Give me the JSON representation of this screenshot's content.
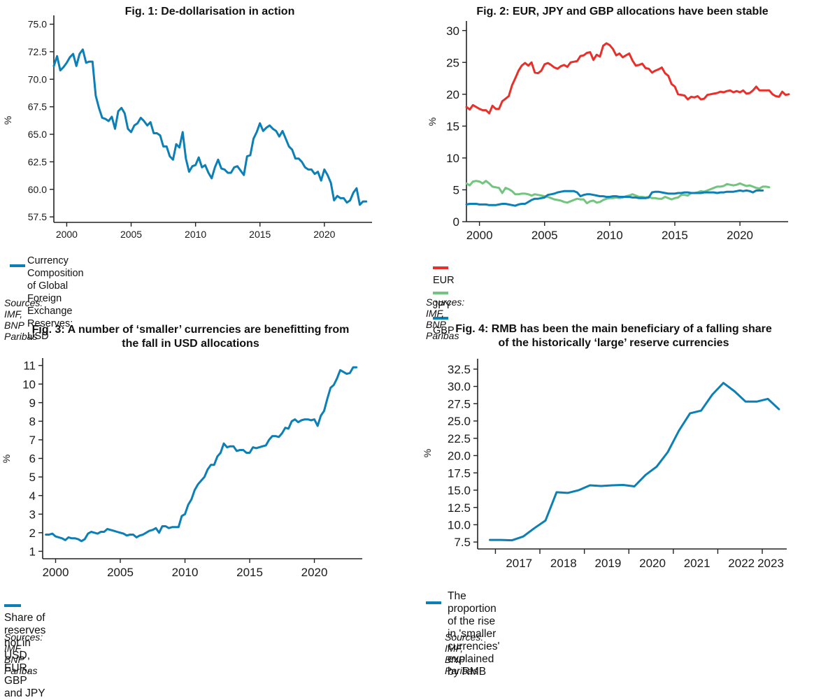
{
  "sources_label": "Sources: IMF, BNP Paribas",
  "colors": {
    "blue": "#0b7fb6",
    "red": "#e8302a",
    "green": "#72c47e",
    "axis": "#222222"
  },
  "chart_data": [
    {
      "id": "fig1",
      "type": "line",
      "title": "Fig. 1: De-dollarisation in action",
      "xlabel": "",
      "ylabel": "%",
      "ylim": [
        57.0,
        75.8
      ],
      "xlim": [
        1999.0,
        2023.7
      ],
      "yticks": [
        57.5,
        60.0,
        62.5,
        65.0,
        67.5,
        70.0,
        72.5,
        75.0
      ],
      "ytick_labels": [
        "57.5",
        "60.0",
        "62.5",
        "65.0",
        "67.5",
        "70.0",
        "72.5",
        "75.0"
      ],
      "xticks": [
        2000,
        2005,
        2010,
        2015,
        2020
      ],
      "xtick_labels": [
        "2000",
        "2005",
        "2010",
        "2015",
        "2020"
      ],
      "grid": false,
      "legend": "bottom-left",
      "source": "Sources: IMF, BNP Paribas",
      "series": [
        {
          "name": "Currency Composition of Global Foreign Exchange Reserves: USD",
          "legend_lines": [
            "Currency Composition of Global",
            "Foreign Exchange Reserves: USD"
          ],
          "color": "#0b7fb6",
          "x_start": 1999.0,
          "x_step": 0.25,
          "values": [
            71.2,
            72.1,
            70.8,
            71.1,
            71.5,
            72.0,
            72.3,
            71.2,
            72.3,
            72.7,
            71.5,
            71.6,
            71.6,
            68.5,
            67.4,
            66.5,
            66.4,
            66.2,
            66.6,
            65.5,
            67.1,
            67.4,
            66.9,
            65.5,
            65.2,
            65.8,
            66.0,
            66.5,
            66.2,
            65.8,
            66.1,
            65.1,
            65.1,
            64.9,
            63.9,
            63.9,
            63.0,
            62.7,
            64.1,
            63.8,
            65.2,
            62.8,
            61.6,
            62.1,
            62.2,
            62.9,
            62.0,
            62.2,
            61.5,
            61.0,
            62.0,
            62.7,
            61.9,
            61.8,
            61.5,
            61.5,
            62.0,
            62.1,
            61.7,
            61.3,
            63.0,
            63.1,
            64.6,
            65.2,
            66.0,
            65.3,
            65.6,
            65.8,
            65.5,
            65.3,
            64.8,
            65.3,
            64.6,
            63.9,
            63.6,
            62.8,
            62.8,
            62.5,
            62.0,
            61.8,
            61.8,
            61.4,
            61.6,
            60.8,
            61.8,
            61.3,
            60.6,
            59.0,
            59.4,
            59.2,
            59.2,
            58.8,
            59.0,
            59.7,
            60.1,
            58.6,
            58.9,
            58.9
          ]
        }
      ]
    },
    {
      "id": "fig2",
      "type": "line",
      "title": "Fig. 2: EUR, JPY and GBP allocations have been stable",
      "xlabel": "",
      "ylabel": "%",
      "ylim": [
        0,
        31.5
      ],
      "xlim": [
        1999.0,
        2023.7
      ],
      "yticks": [
        0,
        5,
        10,
        15,
        20,
        25,
        30
      ],
      "ytick_labels": [
        "0",
        "5",
        "10",
        "15",
        "20",
        "25",
        "30"
      ],
      "xticks": [
        2000,
        2005,
        2010,
        2015,
        2020
      ],
      "xtick_labels": [
        "2000",
        "2005",
        "2010",
        "2015",
        "2020"
      ],
      "grid": false,
      "legend": "bottom-left",
      "source": "Sources: IMF, BNP Paribas",
      "series": [
        {
          "name": "EUR",
          "color": "#e8302a",
          "x_start": 1999.0,
          "x_step": 0.25,
          "values": [
            18.0,
            17.6,
            18.3,
            18.0,
            17.7,
            17.5,
            17.5,
            17.0,
            18.2,
            17.7,
            17.7,
            18.9,
            19.3,
            19.7,
            21.4,
            22.5,
            23.7,
            24.5,
            24.9,
            24.5,
            25.0,
            23.4,
            23.3,
            23.7,
            24.7,
            24.9,
            24.6,
            24.2,
            24.0,
            24.4,
            24.6,
            24.3,
            25.0,
            25.1,
            25.2,
            26.0,
            26.1,
            26.5,
            26.6,
            25.4,
            26.2,
            25.9,
            27.6,
            28.0,
            27.7,
            27.1,
            26.1,
            26.4,
            25.8,
            26.1,
            26.4,
            25.3,
            24.5,
            24.6,
            24.8,
            24.1,
            24.0,
            23.4,
            23.7,
            23.9,
            24.2,
            23.3,
            22.9,
            21.6,
            21.2,
            20.0,
            19.9,
            19.8,
            19.2,
            19.6,
            19.5,
            19.7,
            19.2,
            19.3,
            19.9,
            20.0,
            20.1,
            20.2,
            20.4,
            20.3,
            20.5,
            20.6,
            20.3,
            20.5,
            20.3,
            20.6,
            20.1,
            20.2,
            20.6,
            21.2,
            20.6,
            20.6,
            20.6,
            20.6,
            20.0,
            19.7,
            19.6,
            20.4,
            19.9,
            20.0
          ]
        },
        {
          "name": "JPY",
          "color": "#72c47e",
          "x_start": 1999.0,
          "x_step": 0.25,
          "values": [
            6.0,
            5.7,
            6.3,
            6.4,
            6.3,
            6.0,
            6.4,
            6.0,
            5.5,
            5.4,
            5.3,
            4.5,
            5.3,
            5.1,
            4.8,
            4.3,
            4.3,
            4.4,
            4.4,
            4.3,
            4.1,
            4.3,
            4.2,
            4.1,
            4.0,
            3.9,
            3.7,
            3.5,
            3.4,
            3.3,
            3.1,
            3.0,
            3.2,
            3.4,
            3.6,
            3.5,
            3.5,
            2.9,
            3.2,
            3.3,
            3.0,
            3.1,
            3.4,
            3.6,
            3.7,
            3.7,
            3.8,
            3.7,
            3.8,
            4.0,
            4.1,
            4.3,
            4.1,
            3.9,
            3.9,
            3.8,
            3.9,
            3.7,
            3.7,
            3.6,
            3.6,
            3.9,
            3.7,
            3.5,
            3.7,
            3.8,
            4.2,
            4.2,
            4.1,
            4.5,
            4.5,
            4.6,
            4.8,
            4.7,
            4.9,
            5.1,
            5.3,
            5.5,
            5.5,
            5.6,
            5.9,
            5.8,
            5.7,
            5.8,
            6.0,
            5.8,
            5.6,
            5.7,
            5.5,
            5.3,
            5.2,
            5.5,
            5.5,
            5.4
          ]
        },
        {
          "name": "GBP",
          "color": "#0b7fb6",
          "x_start": 1999.0,
          "x_step": 0.25,
          "values": [
            2.7,
            2.8,
            2.8,
            2.8,
            2.7,
            2.7,
            2.7,
            2.6,
            2.6,
            2.6,
            2.7,
            2.8,
            2.8,
            2.7,
            2.6,
            2.5,
            2.7,
            2.8,
            2.8,
            3.1,
            3.4,
            3.6,
            3.6,
            3.7,
            3.8,
            4.2,
            4.3,
            4.4,
            4.6,
            4.7,
            4.8,
            4.8,
            4.8,
            4.8,
            4.6,
            4.0,
            4.2,
            4.3,
            4.3,
            4.2,
            4.1,
            4.0,
            4.0,
            3.9,
            3.9,
            4.0,
            4.0,
            3.9,
            3.9,
            3.9,
            3.9,
            3.8,
            3.8,
            3.7,
            3.7,
            3.7,
            3.8,
            4.6,
            4.7,
            4.7,
            4.6,
            4.5,
            4.4,
            4.4,
            4.4,
            4.5,
            4.5,
            4.6,
            4.6,
            4.5,
            4.5,
            4.5,
            4.5,
            4.6,
            4.6,
            4.6,
            4.6,
            4.5,
            4.6,
            4.6,
            4.7,
            4.7,
            4.7,
            4.8,
            4.9,
            4.8,
            4.9,
            4.8,
            4.6,
            4.9,
            4.9,
            4.9
          ]
        }
      ]
    },
    {
      "id": "fig3",
      "type": "line",
      "title": "Fig. 3: A number of ‘smaller’ currencies are benefitting from the fall in USD allocations",
      "title_lines": [
        "Fig. 3: A number of ‘smaller’ currencies are benefitting from",
        "the fall in USD allocations"
      ],
      "xlabel": "",
      "ylabel": "%",
      "ylim": [
        0.6,
        11.4
      ],
      "xlim": [
        1999.0,
        2023.7
      ],
      "yticks": [
        1,
        2,
        3,
        4,
        5,
        6,
        7,
        8,
        9,
        10,
        11
      ],
      "ytick_labels": [
        "1",
        "2",
        "3",
        "4",
        "5",
        "6",
        "7",
        "8",
        "9",
        "10",
        "11"
      ],
      "xticks": [
        2000,
        2005,
        2010,
        2015,
        2020
      ],
      "xtick_labels": [
        "2000",
        "2005",
        "2010",
        "2015",
        "2020"
      ],
      "grid": false,
      "legend": "bottom-left",
      "source": "Sources: IMF, BNP Paribas",
      "series": [
        {
          "name": "Share of reserves not in USD, EUR, GBP and JPY",
          "color": "#0b7fb6",
          "x_start": 1999.25,
          "x_step": 0.25,
          "values": [
            1.9,
            1.9,
            1.95,
            1.8,
            1.75,
            1.7,
            1.6,
            1.75,
            1.7,
            1.7,
            1.65,
            1.55,
            1.65,
            1.95,
            2.05,
            2.0,
            1.95,
            2.05,
            2.05,
            2.2,
            2.15,
            2.1,
            2.05,
            2.0,
            1.95,
            1.85,
            1.9,
            1.9,
            1.75,
            1.85,
            1.9,
            2.0,
            2.1,
            2.15,
            2.25,
            2.0,
            2.35,
            2.35,
            2.25,
            2.3,
            2.3,
            2.3,
            2.9,
            3.0,
            3.5,
            3.8,
            4.3,
            4.6,
            4.8,
            5.0,
            5.4,
            5.65,
            5.65,
            6.1,
            6.3,
            6.8,
            6.6,
            6.65,
            6.65,
            6.4,
            6.45,
            6.45,
            6.3,
            6.3,
            6.6,
            6.55,
            6.6,
            6.65,
            6.7,
            7.0,
            7.2,
            7.2,
            7.15,
            7.35,
            7.65,
            7.6,
            8.0,
            8.1,
            7.95,
            8.05,
            8.1,
            8.1,
            8.05,
            8.1,
            7.75,
            8.3,
            8.55,
            9.2,
            9.8,
            9.95,
            10.3,
            10.75,
            10.65,
            10.55,
            10.6,
            10.9,
            10.9
          ]
        }
      ]
    },
    {
      "id": "fig4",
      "type": "line",
      "title": "Fig. 4: RMB has been the main beneficiary of a falling share of the historically ‘large’ reserve currencies",
      "title_lines": [
        "Fig. 4: RMB has been the main beneficiary of a falling share",
        "of the historically ‘large’ reserve currencies"
      ],
      "xlabel": "",
      "ylabel": "%",
      "ylim": [
        6.5,
        34.0
      ],
      "xlim": [
        2016.6,
        2023.55
      ],
      "yticks": [
        7.5,
        10.0,
        12.5,
        15.0,
        17.5,
        20.0,
        22.5,
        25.0,
        27.5,
        30.0,
        32.5
      ],
      "ytick_labels": [
        "7.5",
        "10.0",
        "12.5",
        "15.0",
        "17.5",
        "20.0",
        "22.5",
        "25.0",
        "27.5",
        "30.0",
        "32.5"
      ],
      "xticks": [
        2017,
        2018,
        2019,
        2020,
        2021,
        2022,
        2023
      ],
      "xtick_labels": [
        "2017",
        "2018",
        "2019",
        "2020",
        "2021",
        "2022",
        "2023"
      ],
      "grid": false,
      "legend": "bottom-left",
      "source": "Sources: IMF, BNP Paribas",
      "series": [
        {
          "name": "The proportion of the rise in 'smaller currencies' explained by RMB",
          "legend_lines": [
            "The proportion of the rise in 'smaller currencies'",
            "explained by RMB"
          ],
          "color": "#0b7fb6",
          "x_start": 2016.875,
          "x_step": 0.25,
          "values": [
            7.8,
            7.8,
            7.75,
            8.3,
            9.5,
            10.6,
            14.7,
            14.6,
            15.0,
            15.7,
            15.6,
            15.7,
            15.75,
            15.55,
            17.2,
            18.4,
            20.5,
            23.6,
            26.1,
            26.5,
            28.8,
            30.5,
            29.3,
            27.8,
            27.8,
            28.2,
            26.7
          ]
        }
      ]
    }
  ]
}
